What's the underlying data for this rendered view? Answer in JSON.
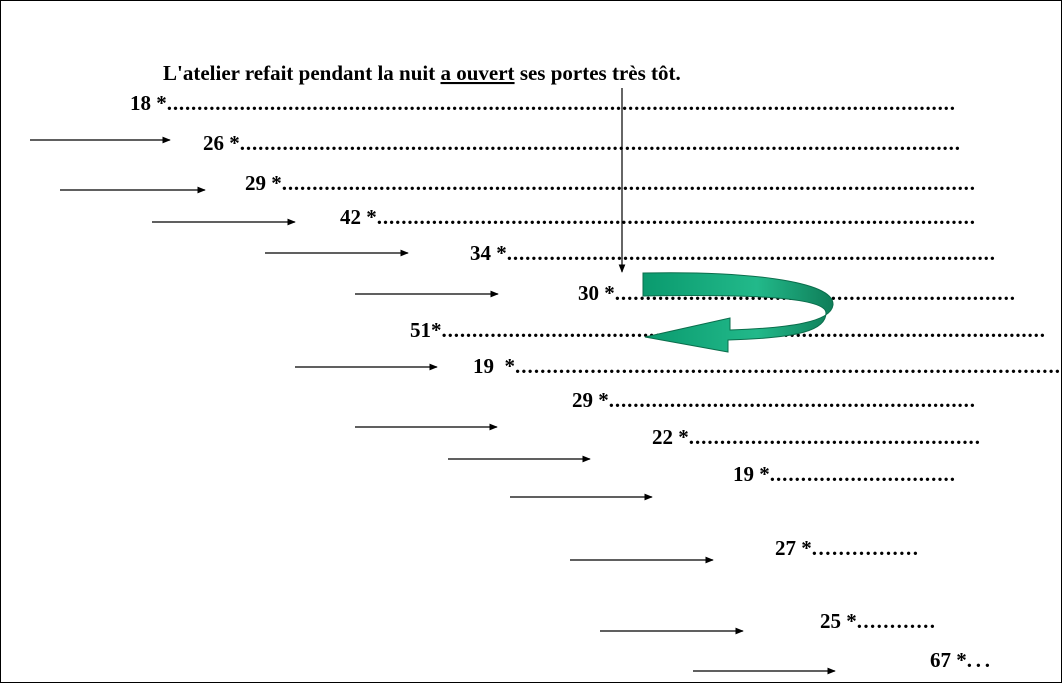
{
  "sentence": {
    "before": "L'atelier refait pendant la nuit ",
    "underlined": "a ouvert",
    "after": " ses portes très tôt."
  },
  "lines": [
    {
      "label": "18 *",
      "dots": ".................................................................................................................................."
    },
    {
      "label": "26 *",
      "dots": "......................................................................................................................"
    },
    {
      "label": "29 *",
      "dots": ".................................................................................................................."
    },
    {
      "label": "42 *",
      "dots": ".................................................................................................."
    },
    {
      "label": "34 *",
      "dots": "................................................................................"
    },
    {
      "label": "30 *",
      "dots": "................................................................."
    },
    {
      "label": "51*",
      "dots": "..................................................................................................."
    },
    {
      "label": "19  *",
      "dots": "......................................................................................."
    },
    {
      "label": "29 *",
      "dots": "............................................................"
    },
    {
      "label": "22 *",
      "dots": "..............................................."
    },
    {
      "label": "19 *",
      "dots": ".............................."
    },
    {
      "label": "27 *",
      "dots": "................"
    },
    {
      "label": "25 *",
      "dots": "............"
    },
    {
      "label": "67 *",
      "dots": "..."
    }
  ]
}
